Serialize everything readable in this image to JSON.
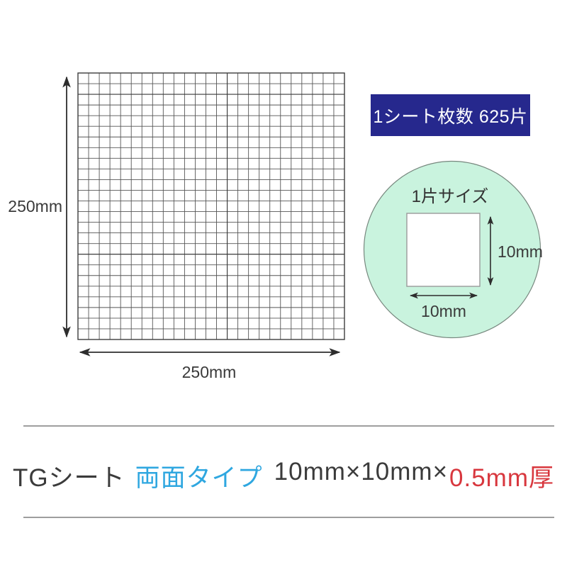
{
  "sheet": {
    "height_label": "250mm",
    "width_label": "250mm",
    "grid": {
      "rows": 25,
      "cols": 25,
      "total_pieces": 625
    }
  },
  "badge": {
    "text": "1シート枚数 625片",
    "bg_color": "#26288d",
    "text_color": "#ffffff"
  },
  "piece": {
    "title": "1片サイズ",
    "height_label": "10mm",
    "width_label": "10mm",
    "circle_color": "#c9f3de"
  },
  "caption": {
    "product": "TGシート",
    "type": "両面タイプ",
    "size": "10mm×10mm×",
    "thickness": "0.5mm厚",
    "text_color": "#3b3b3b",
    "type_color": "#2fa7e0",
    "thickness_color": "#d8373e"
  }
}
